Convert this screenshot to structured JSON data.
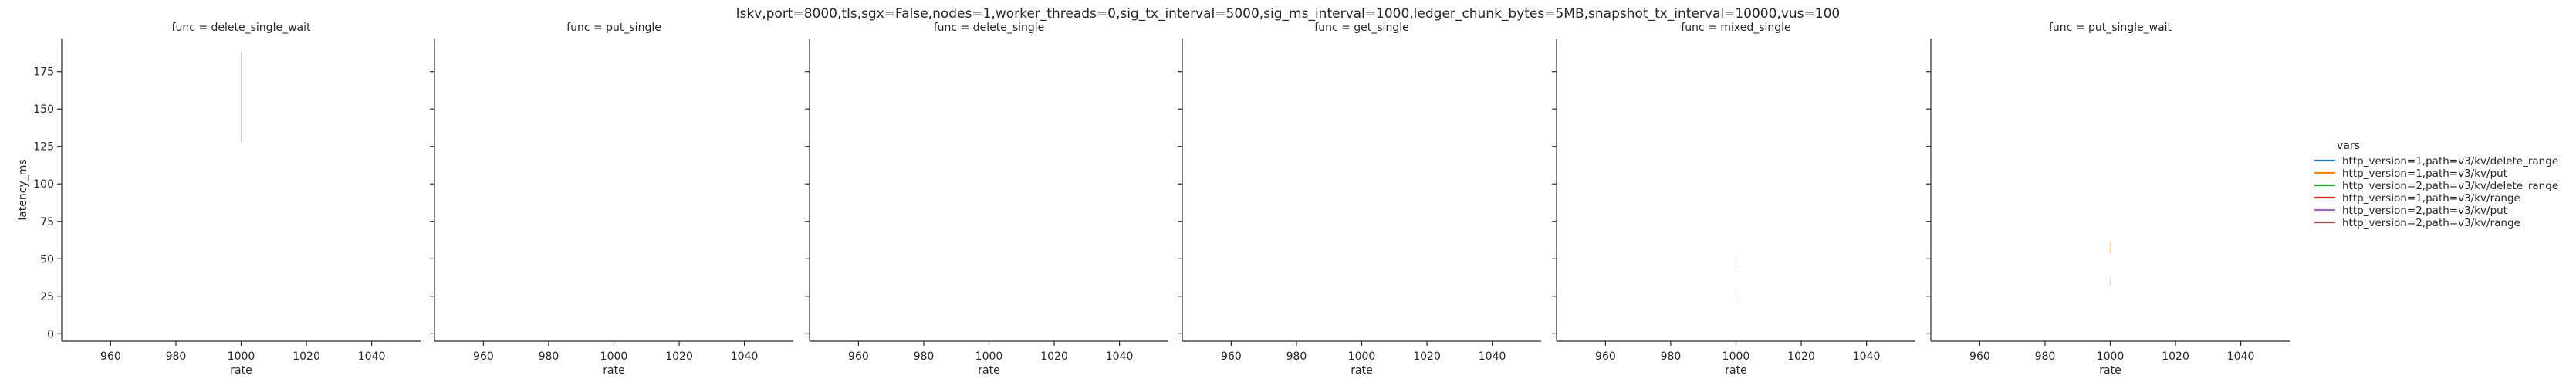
{
  "suptitle": "lskv,port=8000,tls,sgx=False,nodes=1,worker_threads=0,sig_tx_interval=5000,sig_ms_interval=1000,ledger_chunk_bytes=5MB,snapshot_tx_interval=10000,vus=100",
  "legend": {
    "title": "vars",
    "entries": [
      {
        "label": "http_version=1,path=v3/kv/delete_range",
        "color": "#1f77b4"
      },
      {
        "label": "http_version=1,path=v3/kv/put",
        "color": "#ff7f0e"
      },
      {
        "label": "http_version=2,path=v3/kv/delete_range",
        "color": "#2ca02c"
      },
      {
        "label": "http_version=1,path=v3/kv/range",
        "color": "#d62728"
      },
      {
        "label": "http_version=2,path=v3/kv/put",
        "color": "#9467bd"
      },
      {
        "label": "http_version=2,path=v3/kv/range",
        "color": "#8c564b"
      }
    ]
  },
  "chart_data": {
    "type": "line",
    "facet_by": "func",
    "xlabel": "rate",
    "ylabel": "latency_ms",
    "xlim": [
      945,
      1055
    ],
    "ylim": [
      -5,
      197
    ],
    "xticks": [
      960,
      980,
      1000,
      1020,
      1040
    ],
    "yticks": [
      0,
      25,
      50,
      75,
      100,
      125,
      150,
      175
    ],
    "panels": [
      {
        "title": "func = delete_single_wait",
        "series": [
          {
            "color": "#8c564b",
            "x": [
              1000,
              1000
            ],
            "y": [
              128,
              188
            ]
          }
        ]
      },
      {
        "title": "func = put_single",
        "series": []
      },
      {
        "title": "func = delete_single",
        "series": []
      },
      {
        "title": "func = get_single",
        "series": []
      },
      {
        "title": "func = mixed_single",
        "series": [
          {
            "color": "#d62728",
            "x": [
              1000,
              1000
            ],
            "y": [
              44,
              51
            ]
          },
          {
            "color": "#8c564b",
            "x": [
              1000,
              1000
            ],
            "y": [
              23,
              29
            ]
          }
        ]
      },
      {
        "title": "func = put_single_wait",
        "series": [
          {
            "color": "#ff7f0e",
            "x": [
              1000,
              1000
            ],
            "y": [
              53,
              61
            ]
          },
          {
            "color": "#9467bd",
            "x": [
              1000,
              1000
            ],
            "y": [
              32,
              38
            ]
          }
        ]
      }
    ]
  }
}
